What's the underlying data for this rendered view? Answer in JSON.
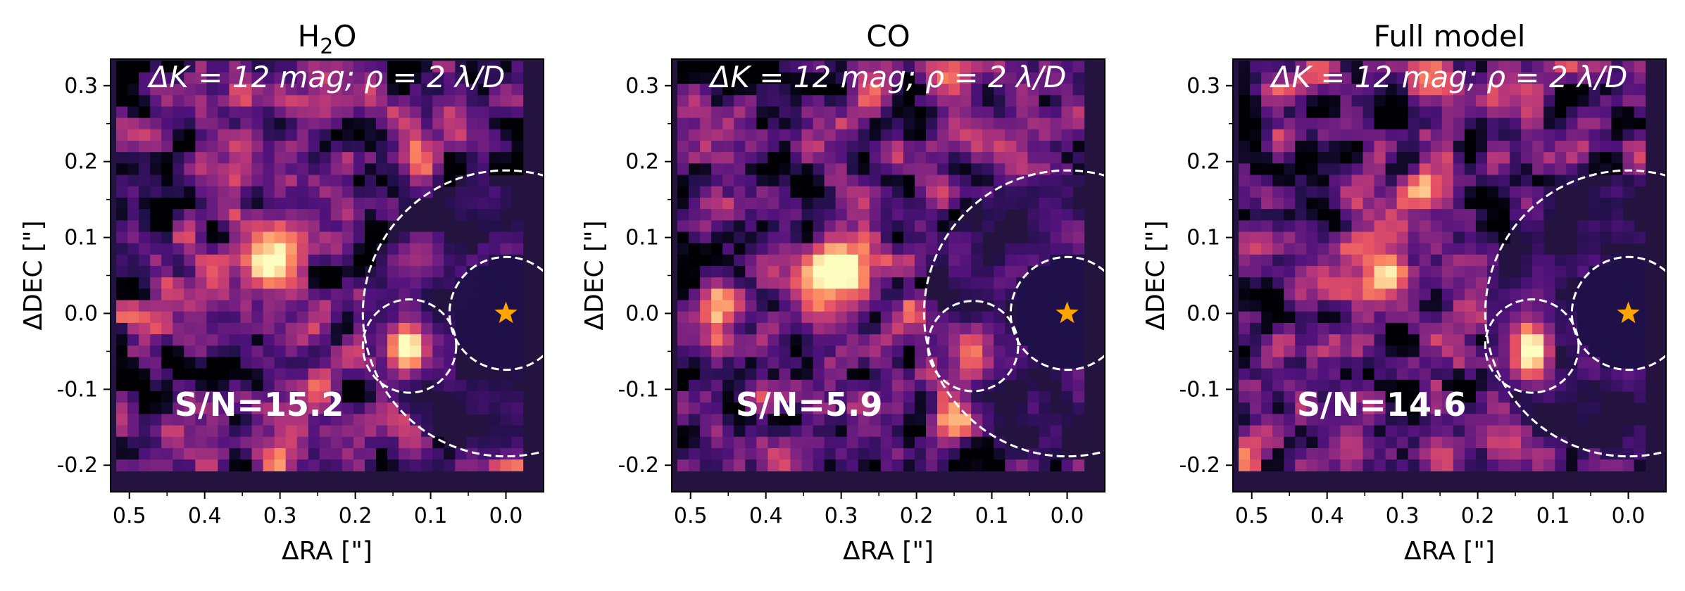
{
  "figure": {
    "axis_label_fill": "#000000"
  },
  "colors": {
    "background_level": "#24123f",
    "star": "#ffa500",
    "circle": "#ffffff",
    "annotation": "#ffffff"
  },
  "chart_data": [
    {
      "type": "heatmap",
      "title": "H2O",
      "title_main": "H",
      "title_sub": "2",
      "title_tail": "O",
      "annotation": "ΔK = 12 mag; ρ = 2 λ/D",
      "snr_label": "S/N=15.2",
      "xlabel": "ΔRA [\"]",
      "ylabel": "ΔDEC [\"]",
      "xlim": [
        0.525,
        -0.05
      ],
      "ylim": [
        -0.235,
        0.335
      ],
      "xticks": [
        0.5,
        0.4,
        0.3,
        0.2,
        0.1,
        0.0
      ],
      "xtick_labels": [
        "0.5",
        "0.4",
        "0.3",
        "0.2",
        "0.1",
        "0.0"
      ],
      "yticks": [
        0.3,
        0.2,
        0.1,
        0.0,
        -0.1,
        -0.2
      ],
      "ytick_labels": [
        "0.3",
        "0.2",
        "0.1",
        "0.0",
        "-0.1",
        "-0.2"
      ],
      "colormap": "magma",
      "star": {
        "name": "host star",
        "x": 0.0,
        "y": 0.0
      },
      "companion": {
        "x": 0.13,
        "y": -0.045,
        "peak": 1.0
      },
      "circles": [
        {
          "name": "companion-aperture",
          "x": 0.128,
          "y": -0.043,
          "r": 0.062
        },
        {
          "name": "inner-star-circle",
          "x": 0.0,
          "y": 0.0,
          "r": 0.075
        },
        {
          "name": "outer-star-circle",
          "x": 0.0,
          "y": 0.0,
          "r": 0.19
        }
      ],
      "blobs": [
        {
          "x": 0.315,
          "y": 0.06,
          "amp": 0.62,
          "s": 0.032
        },
        {
          "x": 0.12,
          "y": 0.07,
          "amp": 0.3,
          "s": 0.025
        },
        {
          "x": 0.5,
          "y": 0.0,
          "amp": 0.4,
          "s": 0.015
        },
        {
          "x": 0.34,
          "y": 0.22,
          "amp": 0.28,
          "s": 0.02
        }
      ],
      "seed": 11
    },
    {
      "type": "heatmap",
      "title": "CO",
      "title_main": "CO",
      "title_sub": "",
      "title_tail": "",
      "annotation": "ΔK = 12 mag; ρ = 2 λ/D",
      "snr_label": "S/N=5.9",
      "xlabel": "ΔRA [\"]",
      "ylabel": "ΔDEC [\"]",
      "xlim": [
        0.525,
        -0.05
      ],
      "ylim": [
        -0.235,
        0.335
      ],
      "xticks": [
        0.5,
        0.4,
        0.3,
        0.2,
        0.1,
        0.0
      ],
      "xtick_labels": [
        "0.5",
        "0.4",
        "0.3",
        "0.2",
        "0.1",
        "0.0"
      ],
      "yticks": [
        0.3,
        0.2,
        0.1,
        0.0,
        -0.1,
        -0.2
      ],
      "ytick_labels": [
        "0.3",
        "0.2",
        "0.1",
        "0.0",
        "-0.1",
        "-0.2"
      ],
      "colormap": "magma",
      "star": {
        "name": "host star",
        "x": 0.0,
        "y": 0.0
      },
      "companion": {
        "x": 0.13,
        "y": -0.055,
        "peak": 0.5
      },
      "circles": [
        {
          "name": "companion-aperture",
          "x": 0.125,
          "y": -0.043,
          "r": 0.06
        },
        {
          "name": "inner-star-circle",
          "x": 0.0,
          "y": 0.0,
          "r": 0.075
        },
        {
          "name": "outer-star-circle",
          "x": 0.0,
          "y": 0.0,
          "r": 0.19
        }
      ],
      "blobs": [
        {
          "x": 0.315,
          "y": 0.05,
          "amp": 1.0,
          "s": 0.03
        },
        {
          "x": 0.45,
          "y": 0.0,
          "amp": 0.35,
          "s": 0.03
        },
        {
          "x": 0.27,
          "y": 0.15,
          "amp": 0.3,
          "s": 0.02
        },
        {
          "x": 0.15,
          "y": -0.13,
          "amp": 0.35,
          "s": 0.025
        }
      ],
      "seed": 23
    },
    {
      "type": "heatmap",
      "title": "Full model",
      "title_main": "Full model",
      "title_sub": "",
      "title_tail": "",
      "annotation": "ΔK = 12 mag; ρ = 2 λ/D",
      "snr_label": "S/N=14.6",
      "xlabel": "ΔRA [\"]",
      "ylabel": "ΔDEC [\"]",
      "xlim": [
        0.525,
        -0.05
      ],
      "ylim": [
        -0.235,
        0.335
      ],
      "xticks": [
        0.5,
        0.4,
        0.3,
        0.2,
        0.1,
        0.0
      ],
      "xtick_labels": [
        "0.5",
        "0.4",
        "0.3",
        "0.2",
        "0.1",
        "0.0"
      ],
      "yticks": [
        0.3,
        0.2,
        0.1,
        0.0,
        -0.1,
        -0.2
      ],
      "ytick_labels": [
        "0.3",
        "0.2",
        "0.1",
        "0.0",
        "-0.1",
        "-0.2"
      ],
      "colormap": "magma",
      "star": {
        "name": "host star",
        "x": 0.0,
        "y": 0.0
      },
      "companion": {
        "x": 0.13,
        "y": -0.045,
        "peak": 0.95
      },
      "circles": [
        {
          "name": "companion-aperture",
          "x": 0.128,
          "y": -0.043,
          "r": 0.062
        },
        {
          "name": "inner-star-circle",
          "x": 0.0,
          "y": 0.0,
          "r": 0.075
        },
        {
          "name": "outer-star-circle",
          "x": 0.0,
          "y": 0.0,
          "r": 0.19
        }
      ],
      "blobs": [
        {
          "x": 0.315,
          "y": 0.055,
          "amp": 0.7,
          "s": 0.03
        },
        {
          "x": 0.27,
          "y": 0.15,
          "amp": 0.3,
          "s": 0.02
        },
        {
          "x": 0.5,
          "y": 0.0,
          "amp": 0.35,
          "s": 0.015
        },
        {
          "x": 0.29,
          "y": 0.155,
          "amp": 0.25,
          "s": 0.015
        }
      ],
      "seed": 37
    }
  ]
}
